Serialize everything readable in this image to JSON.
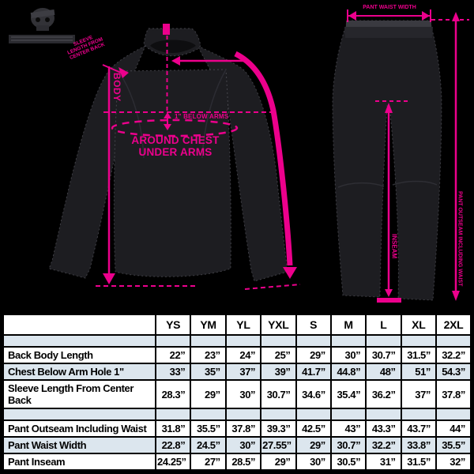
{
  "colors": {
    "accent_pink": "#ec008c",
    "background": "#000000",
    "table_tint": "#dce6ee"
  },
  "jacket_labels": {
    "sleeve_lines": [
      "SLEEVE",
      "LENGTH FROM",
      "CENTER BACK"
    ],
    "body": "BODY",
    "below_arms": "1\" BELOW ARMS",
    "chest_lines": [
      "AROUND CHEST",
      "UNDER ARMS"
    ]
  },
  "pants_labels": {
    "waist": "PANT WAIST WIDTH",
    "outseam": "PANT OUTSEAM INCLUDING WAIST",
    "inseam": "INSEAM"
  },
  "chart_data": {
    "type": "table",
    "columns": [
      "",
      "YS",
      "YM",
      "YL",
      "YXL",
      "S",
      "M",
      "L",
      "XL",
      "2XL"
    ],
    "groups": [
      {
        "section": "jacket",
        "rows": [
          {
            "label": "Back Body Length",
            "values": [
              "22”",
              "23”",
              "24”",
              "25”",
              "29”",
              "30”",
              "30.7”",
              "31.5”",
              "32.2”"
            ]
          },
          {
            "label": "Chest Below Arm Hole 1\"",
            "values": [
              "33”",
              "35”",
              "37”",
              "39”",
              "41.7”",
              "44.8”",
              "48”",
              "51”",
              "54.3”"
            ]
          },
          {
            "label": "Sleeve Length From Center Back",
            "values": [
              "28.3”",
              "29”",
              "30”",
              "30.7”",
              "34.6”",
              "35.4”",
              "36.2”",
              "37”",
              "37.8”"
            ]
          }
        ]
      },
      {
        "section": "pants",
        "rows": [
          {
            "label": "Pant Outseam Including Waist",
            "values": [
              "31.8”",
              "35.5”",
              "37.8”",
              "39.3”",
              "42.5”",
              "43”",
              "43.3”",
              "43.7”",
              "44”"
            ]
          },
          {
            "label": "Pant Waist Width",
            "values": [
              "22.8”",
              "24.5”",
              "30”",
              "27.55”",
              "29”",
              "30.7”",
              "32.2”",
              "33.8”",
              "35.5”"
            ]
          },
          {
            "label": "Pant Inseam",
            "values": [
              "24.25”",
              "27”",
              "28.5”",
              "29”",
              "30”",
              "30.5”",
              "31”",
              "31.5”",
              "32”"
            ]
          }
        ]
      }
    ]
  }
}
